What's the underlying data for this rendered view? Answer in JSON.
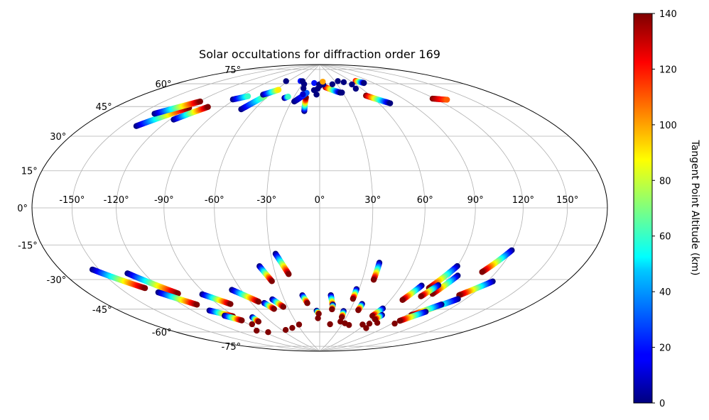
{
  "chart_data": {
    "type": "scatter",
    "projection": "hammer",
    "title": "Solar occultations for diffraction order 169",
    "xlabel": "",
    "ylabel": "",
    "xlim": [
      -180,
      180
    ],
    "ylim": [
      -90,
      90
    ],
    "grid": true,
    "x_ticks": [
      -150,
      -120,
      -90,
      -60,
      -30,
      0,
      30,
      60,
      90,
      120,
      150
    ],
    "y_ticks": [
      -75,
      -60,
      -45,
      -30,
      -15,
      0,
      15,
      30,
      45,
      60,
      75
    ],
    "x_tick_labels": [
      "-150°",
      "-120°",
      "-90°",
      "-60°",
      "-30°",
      "0°",
      "30°",
      "60°",
      "90°",
      "120°",
      "150°"
    ],
    "y_tick_labels": [
      "-75°",
      "-60°",
      "-45°",
      "-30°",
      "-15°",
      "0°",
      "15°",
      "30°",
      "45°",
      "60°",
      "75°"
    ],
    "colorbar": {
      "label": "Tangent Point Altitude (km)",
      "colormap": "jet",
      "range": [
        0,
        140
      ],
      "ticks": [
        0,
        20,
        40,
        60,
        80,
        100,
        120,
        140
      ],
      "tick_labels": [
        "0",
        "20",
        "40",
        "60",
        "80",
        "100",
        "120",
        "140"
      ]
    },
    "series": [
      {
        "tracks": [
          {
            "lon_start": -139,
            "lat_start": 40,
            "lon_end": -119,
            "lat_end": 53,
            "alt_start": 0,
            "alt_end": 140
          },
          {
            "lon_start": -139,
            "lat_start": 47,
            "lon_end": -119,
            "lat_end": 57,
            "alt_start": 0,
            "alt_end": 140
          },
          {
            "lon_start": -117,
            "lat_start": 46,
            "lon_end": -104,
            "lat_end": 55,
            "alt_start": 0,
            "alt_end": 140
          },
          {
            "lon_start": -92,
            "lat_start": 61,
            "lon_end": -82,
            "lat_end": 64,
            "alt_start": 0,
            "alt_end": 60
          },
          {
            "lon_start": -72,
            "lat_start": 56,
            "lon_end": -64,
            "lat_end": 65,
            "alt_start": 0,
            "alt_end": 70
          },
          {
            "lon_start": -68,
            "lat_start": 66,
            "lon_end": -57,
            "lat_end": 70,
            "alt_start": 0,
            "alt_end": 90
          },
          {
            "lon_start": -40,
            "lat_start": 65,
            "lon_end": -37,
            "lat_end": 66,
            "alt_start": 0,
            "alt_end": 60
          },
          {
            "lon_start": -14,
            "lat_start": 57,
            "lon_end": -16,
            "lat_end": 66,
            "alt_start": 0,
            "alt_end": 140
          },
          {
            "lon_start": -27,
            "lat_start": 63,
            "lon_end": -17,
            "lat_end": 69,
            "alt_start": 0,
            "alt_end": 30
          },
          {
            "lon_start": 9,
            "lat_start": 73,
            "lon_end": 27,
            "lat_end": 69,
            "alt_start": 140,
            "alt_end": 0
          },
          {
            "lon_start": 55,
            "lat_start": 66,
            "lon_end": 71,
            "lat_end": 60,
            "alt_start": 140,
            "alt_end": 0
          },
          {
            "lon_start": 118,
            "lat_start": 59,
            "lon_end": 129,
            "lat_end": 57,
            "alt_start": 140,
            "alt_end": 110
          },
          {
            "lon_start": 69,
            "lat_start": 76,
            "lon_end": 76,
            "lat_end": 74,
            "alt_start": 120,
            "alt_end": 0
          },
          {
            "lon_start": -155,
            "lat_start": -28,
            "lon_end": -131,
            "lat_end": -40,
            "alt_start": 0,
            "alt_end": 140
          },
          {
            "lon_start": -132,
            "lat_start": -32,
            "lon_end": -111,
            "lat_end": -45,
            "alt_start": 0,
            "alt_end": 140
          },
          {
            "lon_start": -125,
            "lat_start": -43,
            "lon_end": -108,
            "lat_end": -52,
            "alt_start": 0,
            "alt_end": 140
          },
          {
            "lon_start": -93,
            "lat_start": -47,
            "lon_end": -79,
            "lat_end": -54,
            "alt_start": 0,
            "alt_end": 140
          },
          {
            "lon_start": -67,
            "lat_start": -46,
            "lon_end": -53,
            "lat_end": -54,
            "alt_start": 0,
            "alt_end": 140
          },
          {
            "lon_start": -39,
            "lat_start": -33,
            "lon_end": -34,
            "lat_end": -42,
            "alt_start": 0,
            "alt_end": 140
          },
          {
            "lon_start": -27,
            "lat_start": -26,
            "lon_end": -21,
            "lat_end": -38,
            "alt_start": 0,
            "alt_end": 140
          },
          {
            "lon_start": 38,
            "lat_start": -31,
            "lon_end": 38,
            "lat_end": -41,
            "alt_start": 0,
            "alt_end": 140
          },
          {
            "lon_start": 120,
            "lat_start": -21,
            "lon_end": 110,
            "lat_end": -33,
            "alt_start": 0,
            "alt_end": 140
          },
          {
            "lon_start": 124,
            "lat_start": -37,
            "lon_end": 111,
            "lat_end": -46,
            "alt_start": 0,
            "alt_end": 140
          },
          {
            "lon_start": 90,
            "lat_start": -31,
            "lon_end": 82,
            "lat_end": -44,
            "alt_start": 0,
            "alt_end": 140
          },
          {
            "lon_start": 95,
            "lat_start": -36,
            "lon_end": 89,
            "lat_end": -47,
            "alt_start": 0,
            "alt_end": 140
          },
          {
            "lon_start": 87,
            "lat_start": -42,
            "lon_end": 82,
            "lat_end": -49,
            "alt_start": 0,
            "alt_end": 140
          },
          {
            "lon_start": 75,
            "lat_start": -43,
            "lon_end": 70,
            "lat_end": -52,
            "alt_start": 0,
            "alt_end": 140
          },
          {
            "lon_start": 114,
            "lat_start": -48,
            "lon_end": 97,
            "lat_end": -59,
            "alt_start": 0,
            "alt_end": 140
          },
          {
            "lon_start": 107,
            "lat_start": -52,
            "lon_end": 95,
            "lat_end": -60,
            "alt_start": 0,
            "alt_end": 140
          },
          {
            "lon_start": 103,
            "lat_start": -57,
            "lon_end": 93,
            "lat_end": -64,
            "alt_start": 0,
            "alt_end": 140
          },
          {
            "lon_start": -105,
            "lat_start": -56,
            "lon_end": -92,
            "lat_end": -61,
            "alt_start": 0,
            "alt_end": 140
          },
          {
            "lon_start": -99,
            "lat_start": -60,
            "lon_end": -90,
            "lat_end": -64,
            "alt_start": 0,
            "alt_end": 140
          },
          {
            "lon_start": -49,
            "lat_start": -55,
            "lon_end": -44,
            "lat_end": -59,
            "alt_start": 0,
            "alt_end": 140
          },
          {
            "lon_start": -40,
            "lat_start": -53,
            "lon_end": -34,
            "lat_end": -58,
            "alt_start": 0,
            "alt_end": 140
          },
          {
            "lon_start": -14,
            "lat_start": -51,
            "lon_end": -11,
            "lat_end": -56,
            "alt_start": 0,
            "alt_end": 140
          },
          {
            "lon_start": 9,
            "lat_start": -51,
            "lon_end": 12,
            "lat_end": -58,
            "alt_start": 0,
            "alt_end": 140
          },
          {
            "lon_start": 28,
            "lat_start": -47,
            "lon_end": 28,
            "lat_end": -53,
            "alt_start": 0,
            "alt_end": 140
          },
          {
            "lon_start": 38,
            "lat_start": -56,
            "lon_end": 38,
            "lat_end": -60,
            "alt_start": 0,
            "alt_end": 140
          },
          {
            "lon_start": 60,
            "lat_start": -58,
            "lon_end": 57,
            "lat_end": -63,
            "alt_start": 0,
            "alt_end": 140
          },
          {
            "lon_start": -3,
            "lat_start": -61,
            "lon_end": -1,
            "lat_end": -63,
            "alt_start": 0,
            "alt_end": 140
          },
          {
            "lon_start": 12,
            "lat_start": -57,
            "lon_end": 12,
            "lat_end": -60,
            "alt_start": 0,
            "alt_end": 140
          },
          {
            "lon_start": 24,
            "lat_start": -61,
            "lon_end": 25,
            "lat_end": -65,
            "alt_start": 0,
            "alt_end": 140
          },
          {
            "lon_start": 66,
            "lat_start": -62,
            "lon_end": 64,
            "lat_end": -65,
            "alt_start": 0,
            "alt_end": 140
          },
          {
            "lon_start": -74,
            "lat_start": -63,
            "lon_end": -74,
            "lat_end": -66,
            "alt_start": 0,
            "alt_end": 140
          }
        ],
        "points": [
          {
            "lon": -64,
            "lat": 76,
            "alt": 0
          },
          {
            "lon": -38,
            "lat": 77,
            "alt": 20
          },
          {
            "lon": -34,
            "lat": 77,
            "alt": 0
          },
          {
            "lon": -27,
            "lat": 75,
            "alt": 0
          },
          {
            "lon": -24,
            "lat": 72,
            "alt": 0
          },
          {
            "lon": -21,
            "lat": 68,
            "alt": 10
          },
          {
            "lon": -10,
            "lat": 76,
            "alt": 20
          },
          {
            "lon": -8,
            "lat": 71,
            "alt": 0
          },
          {
            "lon": -4,
            "lat": 68,
            "alt": 0
          },
          {
            "lon": -3,
            "lat": 72,
            "alt": 0
          },
          {
            "lon": -1,
            "lat": 75,
            "alt": 0
          },
          {
            "lon": 0,
            "lat": 74,
            "alt": 0
          },
          {
            "lon": 4,
            "lat": 76,
            "alt": 0
          },
          {
            "lon": 6,
            "lat": 75,
            "alt": 0
          },
          {
            "lon": 22,
            "lat": 75,
            "alt": 0
          },
          {
            "lon": 29,
            "lat": 69,
            "alt": 0
          },
          {
            "lon": 45,
            "lat": 76,
            "alt": 0
          },
          {
            "lon": 54,
            "lat": 74,
            "alt": 0
          },
          {
            "lon": 52,
            "lat": 71,
            "alt": 0
          },
          {
            "lon": 36,
            "lat": 77,
            "alt": 0
          },
          {
            "lon": 6,
            "lat": 77,
            "alt": 100
          },
          {
            "lon": -54,
            "lat": -73,
            "alt": 140
          },
          {
            "lon": -41,
            "lat": -72,
            "alt": 140
          },
          {
            "lon": -28,
            "lat": -70,
            "alt": 140
          },
          {
            "lon": -2,
            "lat": -66,
            "alt": 140
          },
          {
            "lon": 14,
            "lat": -70,
            "alt": 140
          },
          {
            "lon": 26,
            "lat": -68,
            "alt": 140
          },
          {
            "lon": 33,
            "lat": -69,
            "alt": 140
          },
          {
            "lon": 40,
            "lat": -70,
            "alt": 140
          },
          {
            "lon": 57,
            "lat": -69,
            "alt": 140
          },
          {
            "lon": 64,
            "lat": -68,
            "alt": 140
          },
          {
            "lon": 68,
            "lat": -71,
            "alt": 140
          },
          {
            "lon": 93,
            "lat": -66,
            "alt": 140
          },
          {
            "lon": -86,
            "lat": -67,
            "alt": 140
          },
          {
            "lon": -96,
            "lat": -71,
            "alt": 140
          },
          {
            "lon": -85,
            "lat": -73,
            "alt": 140
          },
          {
            "lon": 72,
            "lat": -67,
            "alt": 140
          }
        ]
      }
    ]
  }
}
